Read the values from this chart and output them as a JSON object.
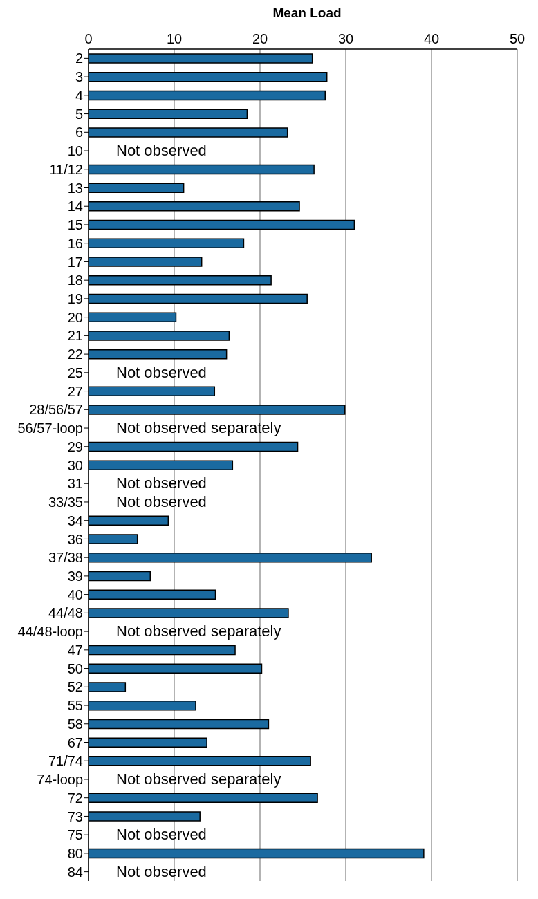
{
  "chart_data": {
    "type": "bar",
    "orientation": "horizontal",
    "xlabel": "Mean Load",
    "categories": [
      "2",
      "3",
      "4",
      "5",
      "6",
      "10",
      "11/12",
      "13",
      "14",
      "15",
      "16",
      "17",
      "18",
      "19",
      "20",
      "21",
      "22",
      "25",
      "27",
      "28/56/57",
      "56/57-loop",
      "29",
      "30",
      "31",
      "33/35",
      "34",
      "36",
      "37/38",
      "39",
      "40",
      "44/48",
      "44/48-loop",
      "47",
      "50",
      "52",
      "55",
      "58",
      "67",
      "71/74",
      "74-loop",
      "72",
      "73",
      "75",
      "80",
      "84"
    ],
    "values": [
      26.1,
      27.8,
      27.6,
      18.5,
      23.2,
      null,
      26.3,
      11.1,
      24.6,
      31.0,
      18.1,
      13.2,
      21.3,
      25.5,
      10.2,
      16.4,
      16.1,
      null,
      14.7,
      29.9,
      null,
      24.4,
      16.8,
      null,
      null,
      9.3,
      5.7,
      33.0,
      7.2,
      14.8,
      23.3,
      null,
      17.1,
      20.2,
      4.3,
      12.5,
      21.0,
      13.8,
      25.9,
      null,
      26.7,
      13.0,
      null,
      39.1,
      null
    ],
    "color": "#1a6aa0",
    "xlim": [
      0,
      50
    ],
    "xticks": [
      0,
      10,
      20,
      30,
      40,
      50
    ],
    "grid": "x",
    "annotations": [
      "Not observed",
      "Not observed",
      "Not observed separately",
      "Not observed",
      "Not observed",
      "Not observed separately",
      "Not observed separately",
      "Not observed",
      "Not observed"
    ]
  }
}
